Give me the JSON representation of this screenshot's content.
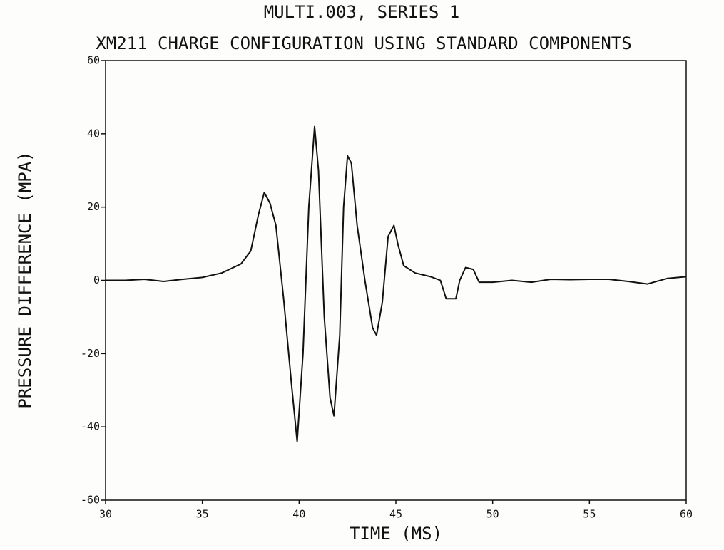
{
  "chart_data": {
    "type": "line",
    "title": "MULTI.003, SERIES 1",
    "subtitle": "XM211 CHARGE CONFIGURATION USING STANDARD COMPONENTS",
    "x_label": "TIME (MS)",
    "y_label": "PRESSURE DIFFERENCE  (MPA)",
    "x": [
      30,
      31,
      32,
      33,
      34,
      35,
      36,
      37,
      37.5,
      37.9,
      38.2,
      38.5,
      38.8,
      39.2,
      39.6,
      39.9,
      40.2,
      40.5,
      40.8,
      41.0,
      41.3,
      41.6,
      41.8,
      42.1,
      42.3,
      42.5,
      42.7,
      43.0,
      43.4,
      43.8,
      44.0,
      44.3,
      44.6,
      44.9,
      45.1,
      45.4,
      46,
      46.8,
      47.3,
      47.6,
      48.1,
      48.3,
      48.6,
      49,
      49.3,
      50,
      51,
      52,
      53,
      54,
      55,
      56,
      57,
      58,
      59,
      60
    ],
    "values": [
      0,
      0,
      0.3,
      -0.3,
      0.3,
      0.8,
      2,
      4.5,
      8,
      18,
      24,
      21,
      15,
      -5,
      -28,
      -44,
      -20,
      20,
      42,
      30,
      -10,
      -32,
      -37,
      -15,
      20,
      34,
      32,
      15,
      0,
      -13,
      -15,
      -6,
      12,
      15,
      10,
      4,
      2,
      1,
      0,
      -5,
      -5,
      0,
      3.5,
      3,
      -0.5,
      -0.5,
      0,
      -0.5,
      0.3,
      0.2,
      0.3,
      0.3,
      -0.3,
      -1,
      0.5,
      1
    ],
    "color": "#111111",
    "xlim": [
      30,
      60
    ],
    "xticks": [
      30,
      35,
      40,
      45,
      50,
      55,
      60
    ],
    "ylim": [
      -60,
      60
    ],
    "yticks": [
      -60,
      -40,
      -20,
      0,
      20,
      40,
      60
    ],
    "grid": false
  }
}
